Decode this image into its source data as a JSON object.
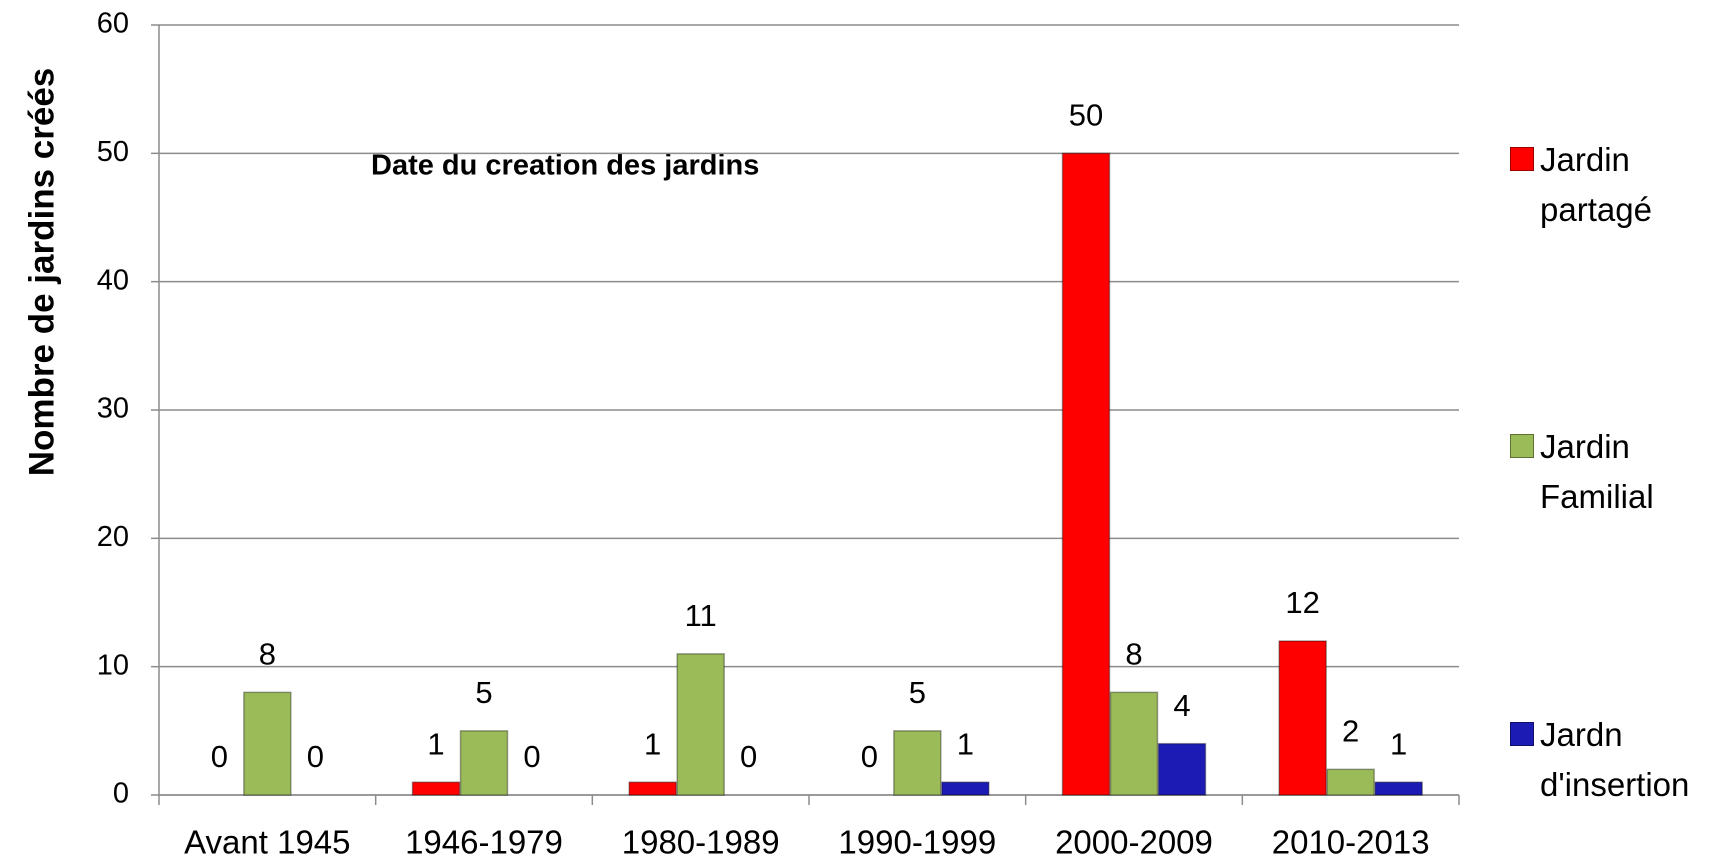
{
  "chart_data": {
    "type": "bar",
    "annotation": "Date du creation des jardins",
    "y_label": "Nombre de jardins créés",
    "categories": [
      "Avant 1945",
      "1946-1979",
      "1980-1989",
      "1990-1999",
      "2000-2009",
      "2010-2013"
    ],
    "series": [
      {
        "name": "Jardin partagé",
        "color": "#ff0000",
        "values": [
          0,
          1,
          1,
          0,
          50,
          12
        ]
      },
      {
        "name": "Jardin Familial",
        "color": "#9bbb59",
        "values": [
          8,
          5,
          11,
          5,
          8,
          2
        ]
      },
      {
        "name": "Jardn d'insertion",
        "color": "#1c1cb4",
        "values": [
          0,
          0,
          0,
          1,
          4,
          1
        ]
      }
    ],
    "ylim": [
      0,
      60
    ],
    "yticks": [
      0,
      10,
      20,
      30,
      40,
      50,
      60
    ],
    "grid": true,
    "legend": "right"
  }
}
